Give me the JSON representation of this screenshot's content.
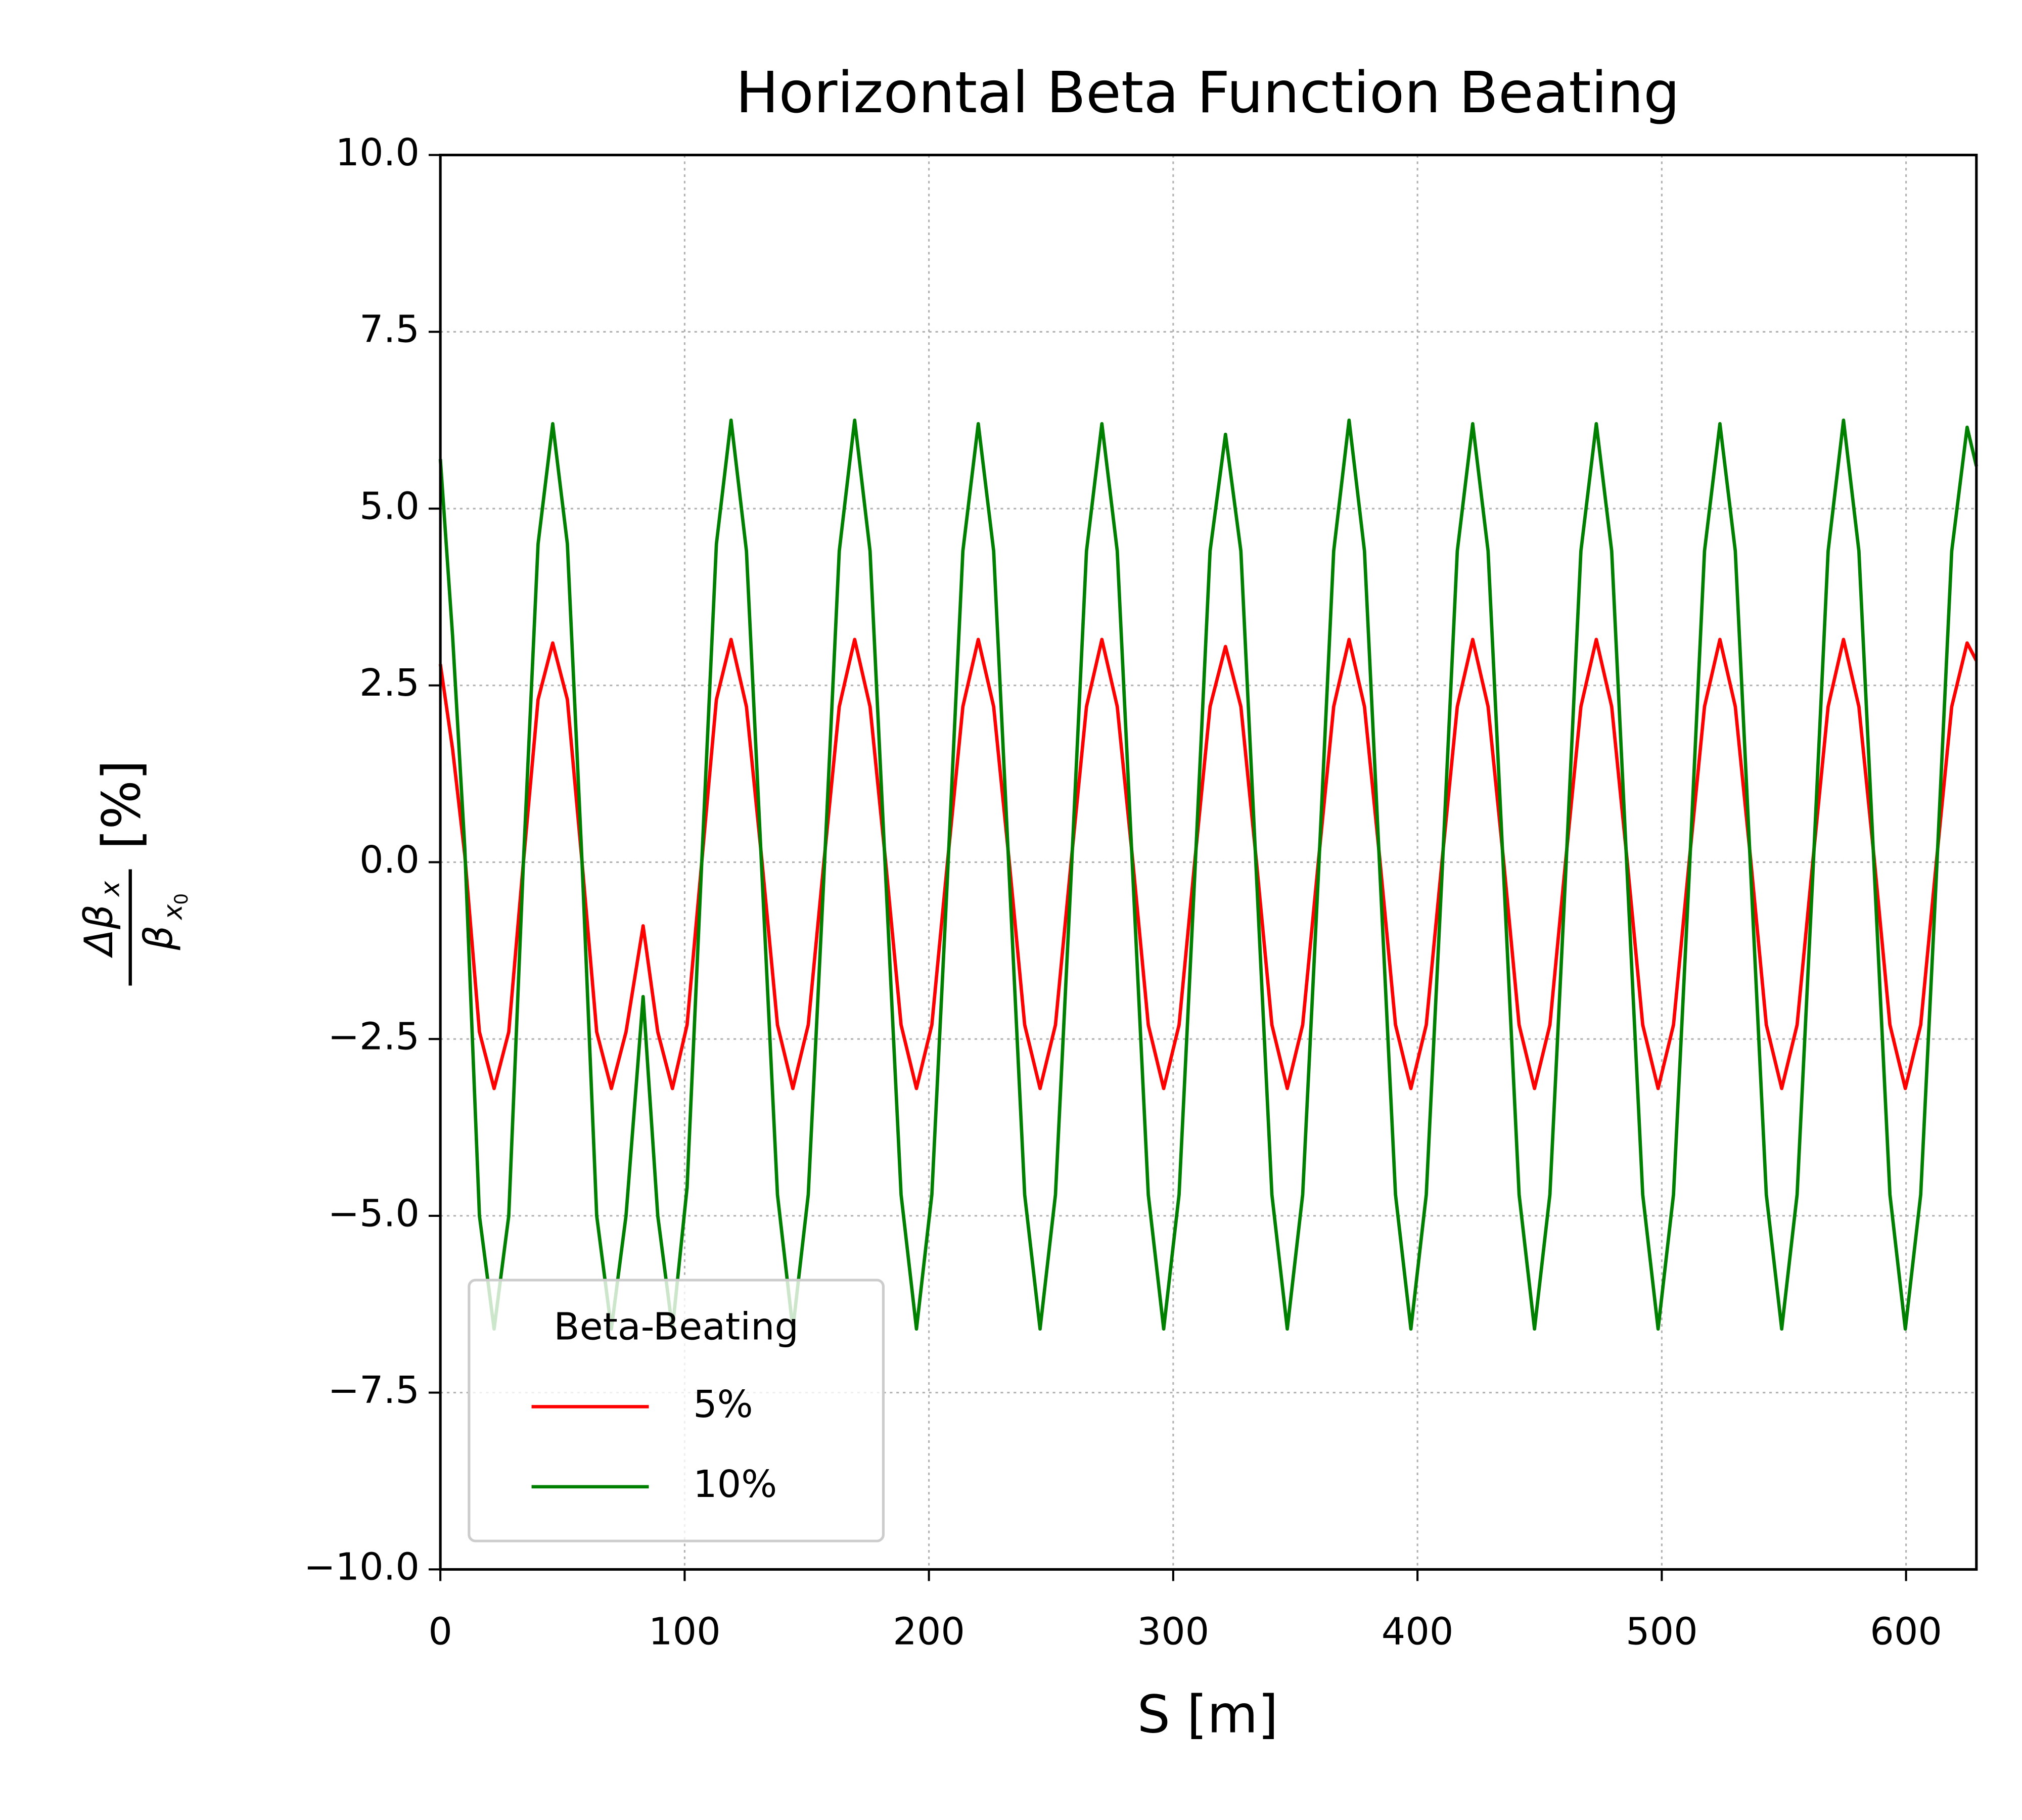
{
  "chart_data": {
    "type": "line",
    "title": "Horizontal Beta Function Beating",
    "xlabel": "S [m]",
    "ylabel": {
      "numerator": "Δβ",
      "numerator_sub": "x",
      "denominator": "β",
      "denominator_sub": "x",
      "denominator_subsub": "0",
      "unit": "[%]"
    },
    "xlim": [
      0,
      628.8
    ],
    "ylim": [
      -10,
      10
    ],
    "xticks": [
      0,
      100,
      200,
      300,
      400,
      500,
      600
    ],
    "yticks": [
      {
        "value": -10,
        "label": "−10.0"
      },
      {
        "value": -7.5,
        "label": "−7.5"
      },
      {
        "value": -5,
        "label": "−5.0"
      },
      {
        "value": -2.5,
        "label": "−2.5"
      },
      {
        "value": 0,
        "label": "0.0"
      },
      2.5,
      {
        "value": 5,
        "label": "5.0"
      },
      7.5,
      {
        "value": 10,
        "label": "10.0"
      }
    ],
    "grid": true,
    "legend": {
      "title": "Beta-Beating",
      "position": "lower left"
    },
    "x": [
      0,
      5,
      10,
      16,
      22,
      28,
      34,
      40,
      46,
      52,
      58,
      64,
      70,
      76,
      83,
      89,
      95,
      101,
      107,
      113,
      119.0,
      125.3,
      131.7,
      138.0,
      144.3,
      150.6,
      157.0,
      163.3,
      169.6,
      175.9,
      182.3,
      188.6,
      194.9,
      201.2,
      207.6,
      213.9,
      220.2,
      226.5,
      232.9,
      239.2,
      245.5,
      251.8,
      258.2,
      264.5,
      270.8,
      277.1,
      283.5,
      289.8,
      296.1,
      302.4,
      308.8,
      315.1,
      321.4,
      327.7,
      334.1,
      340.4,
      346.7,
      353.0,
      359.4,
      365.7,
      372.0,
      378.3,
      384.7,
      391.0,
      397.3,
      403.6,
      410.0,
      416.3,
      422.6,
      428.9,
      435.3,
      441.6,
      447.9,
      454.2,
      460.6,
      466.9,
      473.2,
      479.5,
      485.9,
      492.2,
      498.5,
      504.8,
      511.2,
      517.5,
      523.8,
      530.1,
      536.5,
      542.8,
      549.1,
      555.4,
      561.8,
      568.1,
      574.4,
      580.7,
      587.1,
      593.4,
      599.7,
      606.0,
      612.4,
      618.7,
      625.0,
      628.8
    ],
    "series": [
      {
        "name": "5%",
        "color": "#ff0000",
        "values": [
          2.8,
          1.6,
          0.1,
          -2.4,
          -3.2,
          -2.4,
          0,
          2.3,
          3.1,
          2.3,
          0,
          -2.4,
          -3.2,
          -2.4,
          -0.9,
          -2.4,
          -3.2,
          -2.3,
          0,
          2.3,
          3.15,
          2.2,
          0,
          -2.3,
          -3.2,
          -2.3,
          0,
          2.2,
          3.15,
          2.2,
          0,
          -2.3,
          -3.2,
          -2.3,
          0,
          2.2,
          3.15,
          2.2,
          0,
          -2.3,
          -3.2,
          -2.3,
          0,
          2.2,
          3.15,
          2.2,
          0,
          -2.3,
          -3.2,
          -2.3,
          0,
          2.2,
          3.05,
          2.2,
          0,
          -2.3,
          -3.2,
          -2.3,
          0,
          2.2,
          3.15,
          2.2,
          0,
          -2.3,
          -3.2,
          -2.3,
          0,
          2.2,
          3.15,
          2.2,
          0,
          -2.3,
          -3.2,
          -2.3,
          0,
          2.2,
          3.15,
          2.2,
          0,
          -2.3,
          -3.2,
          -2.3,
          0,
          2.2,
          3.15,
          2.2,
          0,
          -2.3,
          -3.2,
          -2.3,
          0,
          2.2,
          3.15,
          2.2,
          0,
          -2.3,
          -3.2,
          -2.3,
          0,
          2.2,
          3.1,
          2.85
        ]
      },
      {
        "name": "10%",
        "color": "#008000",
        "values": [
          5.7,
          3.2,
          0.2,
          -5,
          -6.6,
          -5,
          0,
          4.5,
          6.2,
          4.5,
          0,
          -5,
          -6.6,
          -5,
          -1.9,
          -5,
          -6.6,
          -4.6,
          0,
          4.5,
          6.25,
          4.4,
          -0.2,
          -4.7,
          -6.6,
          -4.7,
          -0.2,
          4.4,
          6.25,
          4.4,
          -0.2,
          -4.7,
          -6.6,
          -4.7,
          -0.2,
          4.4,
          6.2,
          4.4,
          -0.2,
          -4.7,
          -6.6,
          -4.7,
          -0.2,
          4.4,
          6.2,
          4.4,
          -0.2,
          -4.7,
          -6.6,
          -4.7,
          -0.2,
          4.4,
          6.05,
          4.4,
          -0.2,
          -4.7,
          -6.6,
          -4.7,
          -0.2,
          4.4,
          6.25,
          4.4,
          -0.2,
          -4.7,
          -6.6,
          -4.7,
          -0.2,
          4.4,
          6.2,
          4.4,
          -0.2,
          -4.7,
          -6.6,
          -4.7,
          -0.2,
          4.4,
          6.2,
          4.4,
          -0.2,
          -4.7,
          -6.6,
          -4.7,
          -0.2,
          4.4,
          6.2,
          4.4,
          -0.2,
          -4.7,
          -6.6,
          -4.7,
          -0.2,
          4.4,
          6.25,
          4.4,
          -0.2,
          -4.7,
          -6.6,
          -4.7,
          -0.2,
          4.4,
          6.15,
          5.6
        ]
      }
    ]
  }
}
